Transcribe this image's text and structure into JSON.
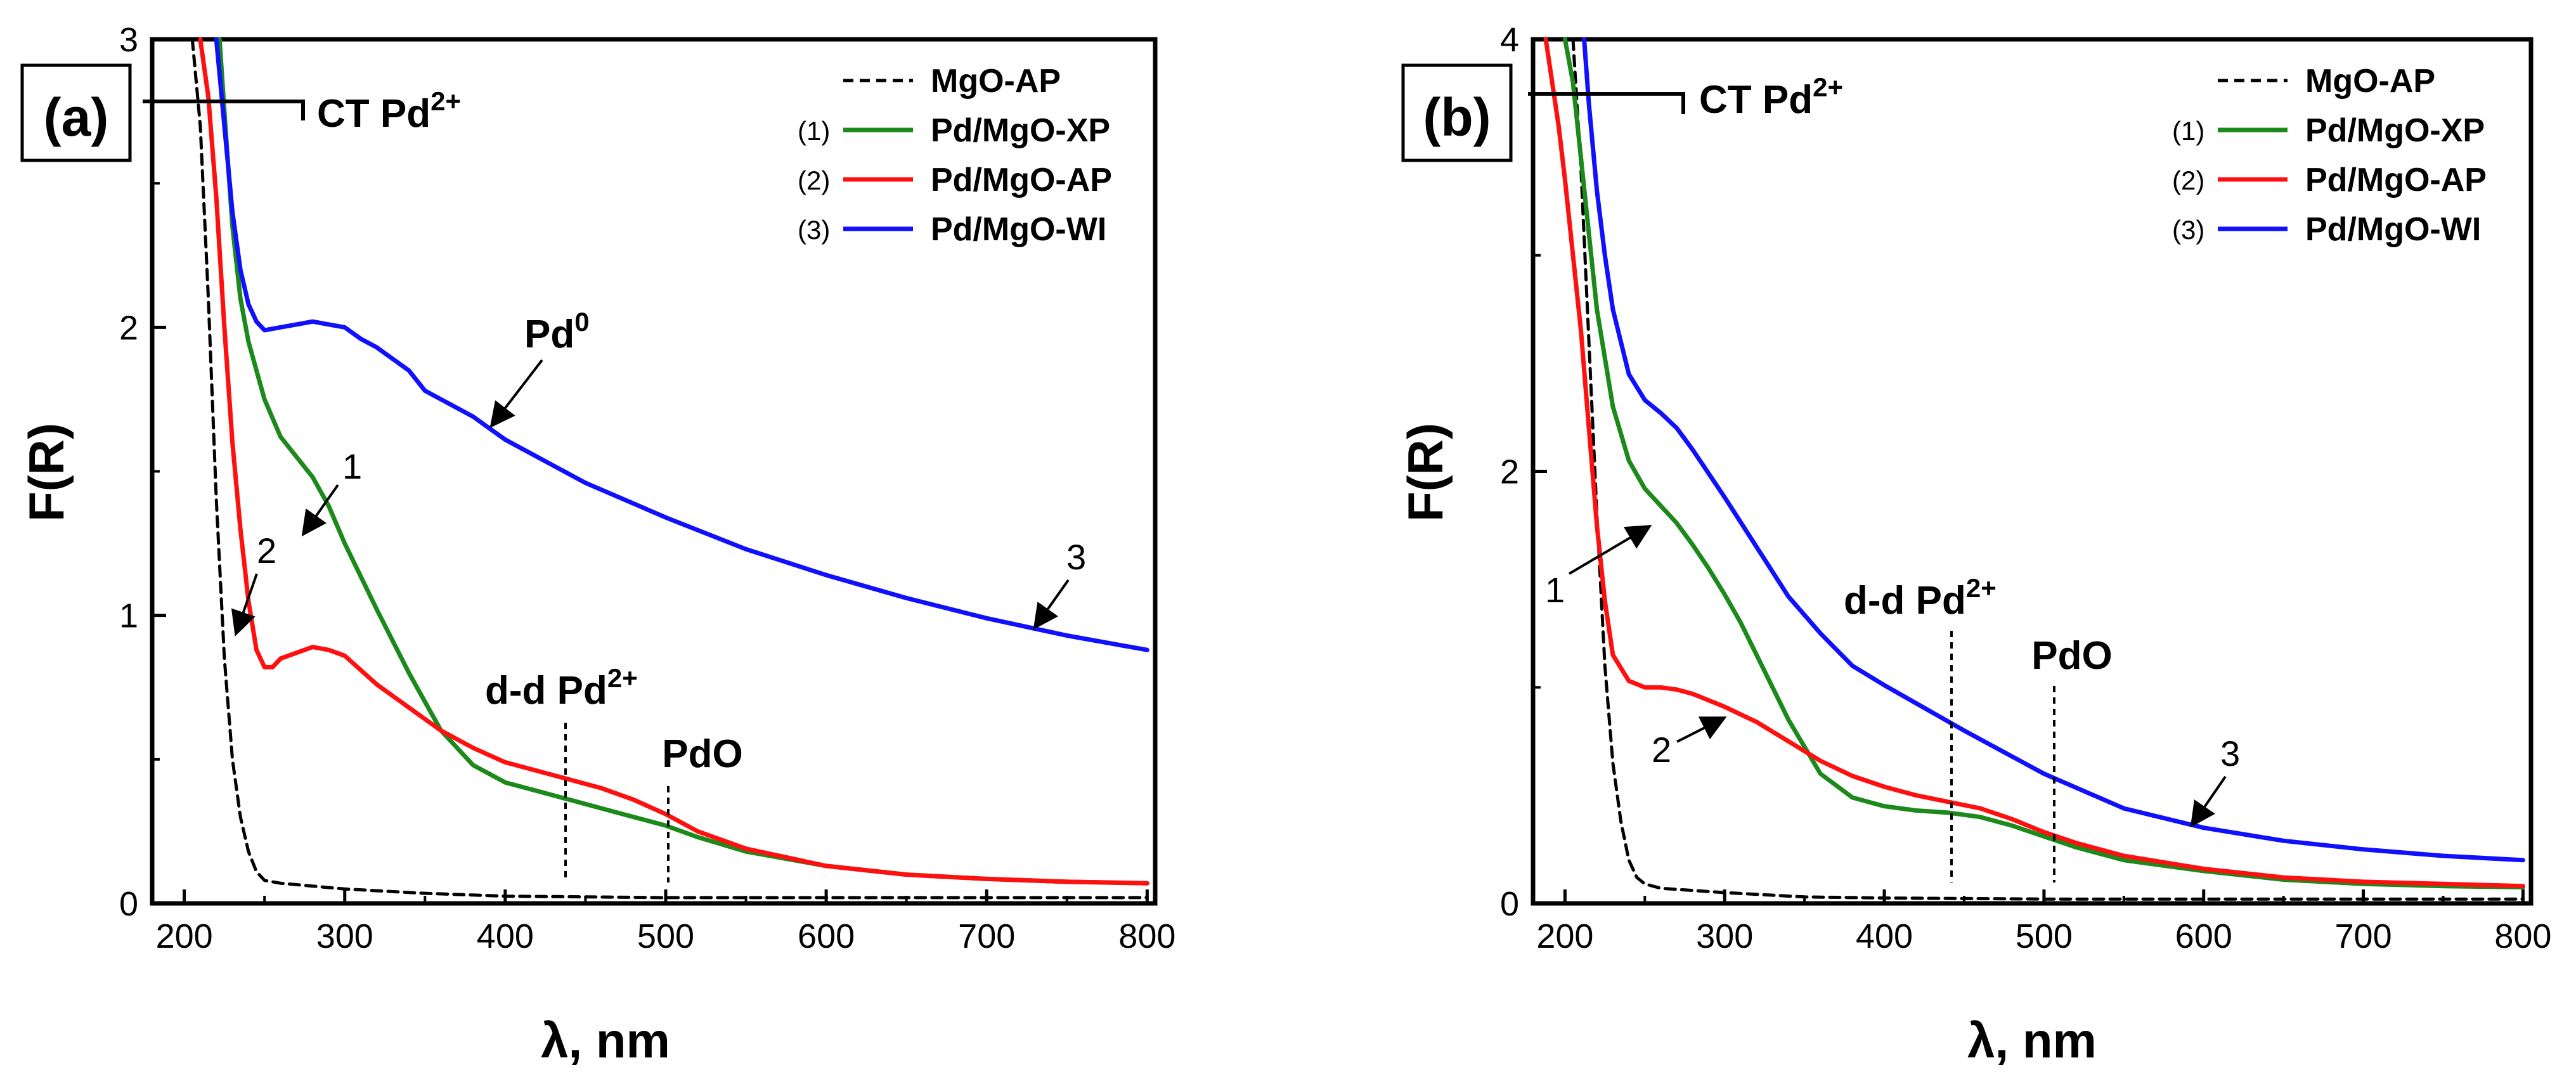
{
  "chart_data": [
    {
      "type": "line",
      "panel_label": "(a)",
      "xlabel": "λ, nm",
      "ylabel": "F(R)",
      "xlim": [
        180,
        805
      ],
      "ylim": [
        0,
        3
      ],
      "xticks": [
        200,
        300,
        400,
        500,
        600,
        700,
        800
      ],
      "yticks": [
        0,
        1,
        2,
        3
      ],
      "series": [
        {
          "name": "MgO-AP",
          "index_label": "",
          "color": "#000000",
          "dash": true,
          "x": [
            205,
            210,
            215,
            220,
            225,
            230,
            235,
            240,
            245,
            250,
            260,
            280,
            300,
            350,
            400,
            500,
            600,
            700,
            800
          ],
          "y": [
            3.0,
            2.7,
            2.1,
            1.4,
            0.85,
            0.5,
            0.3,
            0.18,
            0.11,
            0.08,
            0.07,
            0.06,
            0.05,
            0.035,
            0.025,
            0.02,
            0.02,
            0.02,
            0.02
          ]
        },
        {
          "name": "Pd/MgO-XP",
          "index_label": "(1)",
          "color": "#1b8a1b",
          "dash": false,
          "x": [
            222,
            225,
            230,
            235,
            240,
            250,
            260,
            270,
            280,
            290,
            300,
            320,
            340,
            350,
            360,
            380,
            400,
            420,
            440,
            460,
            480,
            500,
            520,
            550,
            600,
            650,
            700,
            750,
            800
          ],
          "y": [
            3.0,
            2.75,
            2.35,
            2.1,
            1.95,
            1.75,
            1.62,
            1.55,
            1.48,
            1.38,
            1.25,
            1.02,
            0.8,
            0.7,
            0.6,
            0.48,
            0.42,
            0.39,
            0.36,
            0.33,
            0.3,
            0.27,
            0.23,
            0.18,
            0.13,
            0.1,
            0.085,
            0.075,
            0.07
          ]
        },
        {
          "name": "Pd/MgO-AP",
          "index_label": "(2)",
          "color": "#ff1010",
          "dash": false,
          "x": [
            210,
            215,
            220,
            225,
            230,
            235,
            240,
            245,
            250,
            255,
            260,
            270,
            280,
            290,
            300,
            320,
            340,
            360,
            380,
            400,
            420,
            440,
            460,
            480,
            500,
            520,
            550,
            600,
            650,
            700,
            750,
            800
          ],
          "y": [
            3.0,
            2.8,
            2.45,
            2.0,
            1.6,
            1.3,
            1.05,
            0.88,
            0.82,
            0.82,
            0.85,
            0.87,
            0.89,
            0.88,
            0.86,
            0.76,
            0.68,
            0.6,
            0.54,
            0.49,
            0.46,
            0.43,
            0.4,
            0.36,
            0.31,
            0.25,
            0.19,
            0.13,
            0.1,
            0.085,
            0.075,
            0.07
          ]
        },
        {
          "name": "Pd/MgO-WI",
          "index_label": "(3)",
          "color": "#1010ff",
          "dash": false,
          "x": [
            220,
            225,
            230,
            235,
            240,
            245,
            250,
            260,
            270,
            280,
            290,
            300,
            310,
            320,
            330,
            340,
            350,
            360,
            380,
            400,
            450,
            500,
            550,
            600,
            650,
            700,
            750,
            800
          ],
          "y": [
            3.0,
            2.7,
            2.4,
            2.2,
            2.08,
            2.02,
            1.99,
            2.0,
            2.01,
            2.02,
            2.01,
            2.0,
            1.96,
            1.93,
            1.89,
            1.85,
            1.78,
            1.75,
            1.69,
            1.61,
            1.46,
            1.34,
            1.23,
            1.14,
            1.06,
            0.99,
            0.93,
            0.88
          ]
        }
      ],
      "annotations": [
        {
          "id": "ct",
          "text_main": "CT Pd",
          "text_sup": "2+"
        },
        {
          "id": "pd0",
          "text_main": "Pd",
          "text_sup": "0"
        },
        {
          "id": "dd",
          "text_main": "d-d Pd",
          "text_sup": "2+"
        },
        {
          "id": "pdo",
          "text": "PdO"
        },
        {
          "id": "n1",
          "text": "1"
        },
        {
          "id": "n2",
          "text": "2"
        },
        {
          "id": "n3",
          "text": "3"
        }
      ]
    },
    {
      "type": "line",
      "panel_label": "(b)",
      "xlabel": "λ, nm",
      "ylabel": "F(R)",
      "xlim": [
        180,
        805
      ],
      "ylim": [
        0,
        4
      ],
      "xticks": [
        200,
        300,
        400,
        500,
        600,
        700,
        800
      ],
      "yticks": [
        0,
        2,
        4
      ],
      "series": [
        {
          "name": "MgO-AP",
          "index_label": "",
          "color": "#000000",
          "dash": true,
          "x": [
            205,
            210,
            215,
            220,
            225,
            230,
            235,
            240,
            245,
            250,
            260,
            280,
            300,
            350,
            400,
            500,
            600,
            700,
            800
          ],
          "y": [
            4.0,
            3.4,
            2.6,
            1.8,
            1.1,
            0.65,
            0.38,
            0.2,
            0.12,
            0.09,
            0.07,
            0.06,
            0.05,
            0.03,
            0.025,
            0.02,
            0.02,
            0.02,
            0.02
          ]
        },
        {
          "name": "Pd/MgO-XP",
          "index_label": "(1)",
          "color": "#1b8a1b",
          "dash": false,
          "x": [
            200,
            205,
            210,
            215,
            220,
            230,
            240,
            250,
            260,
            270,
            280,
            290,
            300,
            310,
            320,
            340,
            360,
            380,
            400,
            420,
            440,
            460,
            480,
            500,
            520,
            550,
            600,
            650,
            700,
            750,
            800
          ],
          "y": [
            4.0,
            3.8,
            3.45,
            3.1,
            2.75,
            2.3,
            2.05,
            1.92,
            1.84,
            1.76,
            1.66,
            1.55,
            1.43,
            1.3,
            1.15,
            0.85,
            0.6,
            0.49,
            0.45,
            0.43,
            0.42,
            0.4,
            0.36,
            0.31,
            0.26,
            0.2,
            0.15,
            0.11,
            0.09,
            0.08,
            0.075
          ]
        },
        {
          "name": "Pd/MgO-AP",
          "index_label": "(2)",
          "color": "#ff1010",
          "dash": false,
          "x": [
            188,
            192,
            196,
            200,
            205,
            210,
            215,
            220,
            225,
            230,
            240,
            250,
            260,
            270,
            280,
            300,
            320,
            340,
            360,
            380,
            400,
            420,
            440,
            460,
            480,
            500,
            520,
            550,
            600,
            650,
            700,
            750,
            800
          ],
          "y": [
            4.0,
            3.8,
            3.6,
            3.35,
            3.0,
            2.65,
            2.2,
            1.75,
            1.4,
            1.15,
            1.03,
            1.0,
            1.0,
            0.99,
            0.97,
            0.91,
            0.84,
            0.75,
            0.66,
            0.59,
            0.54,
            0.5,
            0.47,
            0.44,
            0.39,
            0.33,
            0.28,
            0.22,
            0.16,
            0.12,
            0.1,
            0.09,
            0.08
          ]
        },
        {
          "name": "Pd/MgO-WI",
          "index_label": "(3)",
          "color": "#1010ff",
          "dash": false,
          "x": [
            212,
            215,
            220,
            225,
            230,
            240,
            250,
            260,
            270,
            280,
            300,
            320,
            340,
            360,
            380,
            400,
            450,
            500,
            550,
            600,
            650,
            700,
            750,
            800
          ],
          "y": [
            4.0,
            3.7,
            3.3,
            3.0,
            2.75,
            2.45,
            2.33,
            2.27,
            2.2,
            2.1,
            1.88,
            1.65,
            1.42,
            1.25,
            1.1,
            1.01,
            0.8,
            0.6,
            0.44,
            0.35,
            0.29,
            0.25,
            0.22,
            0.2
          ]
        }
      ],
      "annotations": [
        {
          "id": "ct",
          "text_main": "CT Pd",
          "text_sup": "2+"
        },
        {
          "id": "dd",
          "text_main": "d-d Pd",
          "text_sup": "2+"
        },
        {
          "id": "pdo",
          "text": "PdO"
        },
        {
          "id": "n1",
          "text": "1"
        },
        {
          "id": "n2",
          "text": "2"
        },
        {
          "id": "n3",
          "text": "3"
        }
      ]
    }
  ]
}
